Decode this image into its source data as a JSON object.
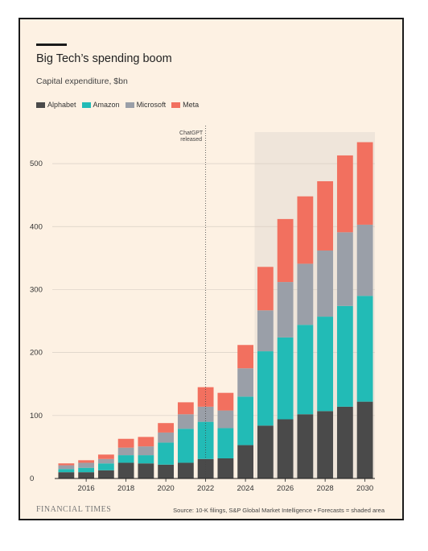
{
  "header": {
    "title": "Big Tech’s spending boom",
    "subtitle": "Capital expenditure, $bn"
  },
  "footer": {
    "brand": "FINANCIAL TIMES",
    "source": "Source: 10-K filings, S&P Global Market Intelligence • Forecasts = shaded area"
  },
  "colors": {
    "background": "#fdf1e3",
    "shade": "#efe5da",
    "Alphabet": "#4a4a4a",
    "Amazon": "#22bbb6",
    "Microsoft": "#9a9fa8",
    "Meta": "#f2705f"
  },
  "chart_data": {
    "type": "bar",
    "stacked": true,
    "categories": [
      "2015",
      "2016",
      "2017",
      "2018",
      "2019",
      "2020",
      "2021",
      "2022",
      "2023",
      "2024",
      "2025",
      "2026",
      "2027",
      "2028",
      "2029",
      "2030"
    ],
    "tick_labels": [
      "2016",
      "2018",
      "2020",
      "2022",
      "2024",
      "2026",
      "2028",
      "2030"
    ],
    "series": [
      {
        "name": "Alphabet",
        "values": [
          10,
          10,
          13,
          25,
          24,
          22,
          25,
          31,
          32,
          53,
          84,
          94,
          102,
          107,
          114,
          122
        ]
      },
      {
        "name": "Amazon",
        "values": [
          5,
          7,
          11,
          12,
          13,
          35,
          54,
          59,
          48,
          77,
          118,
          130,
          142,
          150,
          160,
          168
        ]
      },
      {
        "name": "Microsoft",
        "values": [
          6,
          8,
          7,
          12,
          14,
          16,
          23,
          24,
          28,
          45,
          65,
          88,
          97,
          105,
          117,
          113
        ]
      },
      {
        "name": "Meta",
        "values": [
          3,
          4,
          7,
          14,
          15,
          15,
          19,
          31,
          28,
          37,
          69,
          100,
          107,
          110,
          122,
          131
        ]
      }
    ],
    "ylim": [
      0,
      550
    ],
    "yticks": [
      0,
      100,
      200,
      300,
      400,
      500
    ],
    "forecast_start": "2025",
    "annotation": {
      "line1": "ChatGPT",
      "line2": "released",
      "at": "late 2022"
    },
    "legend": "top-left",
    "grid": true
  }
}
